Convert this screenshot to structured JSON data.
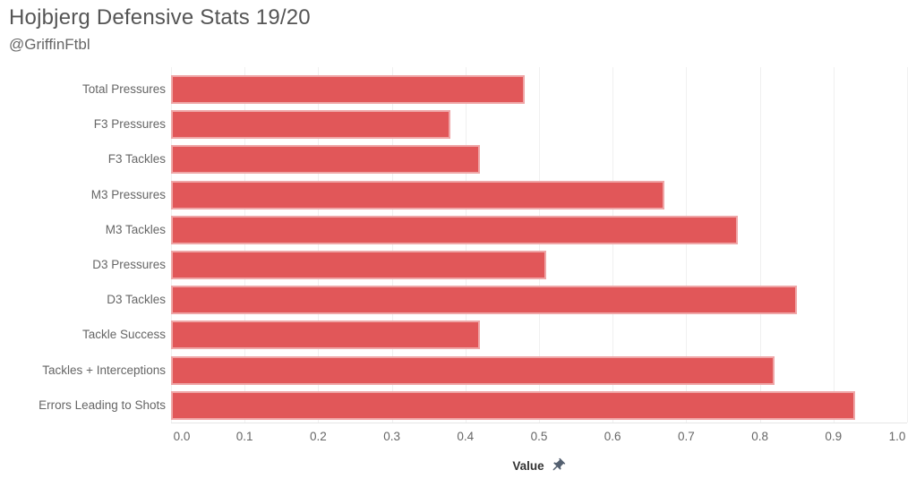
{
  "header": {
    "title": "Hojbjerg Defensive Stats 19/20",
    "subtitle": "@GriffinFtbl"
  },
  "chart_data": {
    "type": "bar",
    "orientation": "horizontal",
    "title": "Hojbjerg Defensive Stats 19/20",
    "subtitle": "@GriffinFtbl",
    "categories": [
      "Total Pressures",
      "F3 Pressures",
      "F3 Tackles",
      "M3 Pressures",
      "M3 Tackles",
      "D3 Pressures",
      "D3 Tackles",
      "Tackle Success",
      "Tackles + Interceptions",
      "Errors Leading to Shots"
    ],
    "values": [
      0.48,
      0.38,
      0.42,
      0.67,
      0.77,
      0.51,
      0.85,
      0.42,
      0.82,
      0.93
    ],
    "xlabel": "Value",
    "xlim": [
      0.0,
      1.0
    ],
    "xticks": [
      "0.0",
      "0.1",
      "0.2",
      "0.3",
      "0.4",
      "0.5",
      "0.6",
      "0.7",
      "0.8",
      "0.9",
      "1.0"
    ],
    "grid": "vertical-on",
    "legend": "none",
    "colors": {
      "bar_fill": "#e15759",
      "bar_border": "#efa6a7",
      "grid": "#f0f0f0",
      "axis_line": "#e6e6e6",
      "title_text": "#555555",
      "label_text": "#666666",
      "axis_title_text": "#333333",
      "pin": "#546070"
    }
  },
  "icons": {
    "pin": "pushpin-icon"
  }
}
